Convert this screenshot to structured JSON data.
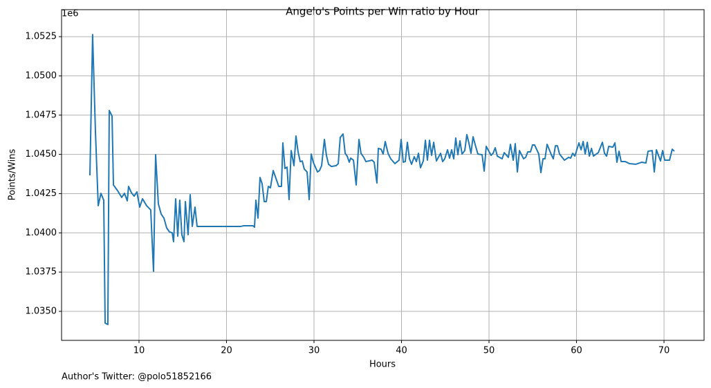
{
  "chart_data": {
    "type": "line",
    "title": "Angelo's Points per Win ratio by Hour",
    "xlabel": "Hours",
    "ylabel": "Points/Wins",
    "offset_label": "1e6",
    "footnote": "Author's Twitter: @polo51852166",
    "color": "#1f77b4",
    "grid": true,
    "xlim": [
      1.15,
      74.58
    ],
    "ylim": [
      1.03315,
      1.05422
    ],
    "xticks": [
      10,
      20,
      30,
      40,
      50,
      60,
      70
    ],
    "yticks": [
      {
        "value": 1.035,
        "label": "1.0350"
      },
      {
        "value": 1.0375,
        "label": "1.0375"
      },
      {
        "value": 1.04,
        "label": "1.0400"
      },
      {
        "value": 1.0425,
        "label": "1.0425"
      },
      {
        "value": 1.045,
        "label": "1.0450"
      },
      {
        "value": 1.0475,
        "label": "1.0475"
      },
      {
        "value": 1.05,
        "label": "1.0500"
      },
      {
        "value": 1.0525,
        "label": "1.0525"
      }
    ],
    "x": [
      4.39,
      4.7,
      5.02,
      5.34,
      5.65,
      5.97,
      6.13,
      6.44,
      6.6,
      6.92,
      7.08,
      7.55,
      8.02,
      8.34,
      8.66,
      8.81,
      9.13,
      9.45,
      9.76,
      10.08,
      10.4,
      10.87,
      11.34,
      11.66,
      11.9,
      12.21,
      12.53,
      12.85,
      13.16,
      13.48,
      13.79,
      13.95,
      14.19,
      14.43,
      14.66,
      14.9,
      15.14,
      15.3,
      15.61,
      15.85,
      16.09,
      16.4,
      16.64,
      21.62,
      21.94,
      23.04,
      23.2,
      23.36,
      23.6,
      23.83,
      24.07,
      24.31,
      24.55,
      24.78,
      25.02,
      25.34,
      25.97,
      26.28,
      26.44,
      26.68,
      26.92,
      27.15,
      27.39,
      27.71,
      27.94,
      28.18,
      28.42,
      28.66,
      28.89,
      29.21,
      29.45,
      29.68,
      29.92,
      30.4,
      30.63,
      30.87,
      31.19,
      31.42,
      31.66,
      31.98,
      32.53,
      32.77,
      33.0,
      33.32,
      33.56,
      33.79,
      34.03,
      34.19,
      34.51,
      34.82,
      35.14,
      35.37,
      35.69,
      35.93,
      36.64,
      36.88,
      37.19,
      37.35,
      37.67,
      37.9,
      38.14,
      38.46,
      38.77,
      39.25,
      39.72,
      39.96,
      40.2,
      40.43,
      40.67,
      40.91,
      41.15,
      41.46,
      41.7,
      41.94,
      42.17,
      42.49,
      42.73,
      42.96,
      43.2,
      43.44,
      43.68,
      43.99,
      44.47,
      44.7,
      44.94,
      45.26,
      45.49,
      45.73,
      45.97,
      46.2,
      46.44,
      46.68,
      46.92,
      47.23,
      47.47,
      47.7,
      47.94,
      48.18,
      48.5,
      48.73,
      49.21,
      49.45,
      49.68,
      50.24,
      50.47,
      50.71,
      50.95,
      51.5,
      51.74,
      52.21,
      52.45,
      52.77,
      53.0,
      53.24,
      53.48,
      53.95,
      54.19,
      54.43,
      54.74,
      54.98,
      55.21,
      55.69,
      55.93,
      56.17,
      56.4,
      56.64,
      57.12,
      57.35,
      57.59,
      57.82,
      58.06,
      58.62,
      59.09,
      59.33,
      59.57,
      59.81,
      60.28,
      60.52,
      60.76,
      60.99,
      61.23,
      61.47,
      61.71,
      61.94,
      62.49,
      62.96,
      63.2,
      63.44,
      63.68,
      64.15,
      64.39,
      64.62,
      64.86,
      65.1,
      65.57,
      66.05,
      66.76,
      67.47,
      67.93,
      68.18,
      68.65,
      68.89,
      69.13,
      69.6,
      69.84,
      70.08,
      70.63,
      70.94,
      71.18
    ],
    "values": [
      1.04366,
      1.05263,
      1.04648,
      1.04173,
      1.04252,
      1.04208,
      1.03425,
      1.03416,
      1.0478,
      1.04744,
      1.04305,
      1.04269,
      1.04226,
      1.04252,
      1.04204,
      1.04296,
      1.04256,
      1.04234,
      1.04261,
      1.04164,
      1.04217,
      1.04173,
      1.04146,
      1.03755,
      1.04498,
      1.04186,
      1.0412,
      1.04094,
      1.04032,
      1.04006,
      1.04001,
      1.03944,
      1.04217,
      1.03979,
      1.04208,
      1.03988,
      1.03944,
      1.04199,
      1.03988,
      1.04243,
      1.04041,
      1.04164,
      1.04041,
      1.04041,
      1.04045,
      1.04045,
      1.04036,
      1.04208,
      1.04094,
      1.04353,
      1.04313,
      1.04199,
      1.04199,
      1.04296,
      1.04287,
      1.04397,
      1.04296,
      1.04296,
      1.04573,
      1.0441,
      1.04419,
      1.04212,
      1.04524,
      1.04428,
      1.04617,
      1.04516,
      1.04454,
      1.04458,
      1.04406,
      1.04388,
      1.04212,
      1.04502,
      1.0445,
      1.04388,
      1.04397,
      1.04428,
      1.04595,
      1.04494,
      1.04437,
      1.04423,
      1.04428,
      1.04441,
      1.04608,
      1.0463,
      1.04507,
      1.04489,
      1.0445,
      1.04476,
      1.04463,
      1.04305,
      1.04595,
      1.04507,
      1.04481,
      1.04454,
      1.04463,
      1.0445,
      1.04318,
      1.04538,
      1.04533,
      1.04502,
      1.04582,
      1.04507,
      1.04472,
      1.04441,
      1.04463,
      1.04595,
      1.0445,
      1.04454,
      1.04577,
      1.04472,
      1.04437,
      1.04485,
      1.04454,
      1.04507,
      1.04415,
      1.04458,
      1.0459,
      1.04463,
      1.0459,
      1.04494,
      1.04577,
      1.04458,
      1.04507,
      1.04454,
      1.04472,
      1.04529,
      1.04476,
      1.04529,
      1.04472,
      1.04604,
      1.04498,
      1.04586,
      1.04502,
      1.04524,
      1.04626,
      1.04573,
      1.04507,
      1.04612,
      1.04546,
      1.04502,
      1.04498,
      1.04393,
      1.04551,
      1.04494,
      1.04507,
      1.04542,
      1.04489,
      1.04472,
      1.04511,
      1.04481,
      1.04564,
      1.04463,
      1.04568,
      1.04388,
      1.04524,
      1.04472,
      1.04481,
      1.04516,
      1.04516,
      1.0456,
      1.0456,
      1.04502,
      1.04384,
      1.04472,
      1.04472,
      1.04564,
      1.04498,
      1.04472,
      1.04555,
      1.04555,
      1.04502,
      1.04463,
      1.04481,
      1.04476,
      1.04507,
      1.04489,
      1.04573,
      1.04529,
      1.04582,
      1.04502,
      1.04577,
      1.04489,
      1.04538,
      1.04489,
      1.04511,
      1.04577,
      1.04507,
      1.04489,
      1.04551,
      1.04546,
      1.04573,
      1.0445,
      1.0452,
      1.04454,
      1.04454,
      1.04441,
      1.04437,
      1.0445,
      1.04445,
      1.0452,
      1.04524,
      1.04388,
      1.04529,
      1.04458,
      1.04524,
      1.04463,
      1.04463,
      1.04533,
      1.0452
    ]
  }
}
